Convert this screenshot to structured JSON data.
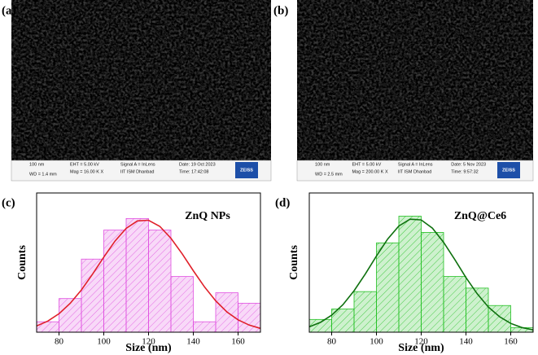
{
  "sem_panels": [
    {
      "label": "(a)",
      "scale": "100 nm",
      "wd": "WD = 1.4 mm",
      "eht": "EHT = 5.00 kV",
      "mag": "Mag = 16.00 K X",
      "signal": "Signal A = InLens",
      "institute": "IIT ISM Dhanbad",
      "date": "Date: 19 Oct 2023",
      "time": "Time: 17:42:08",
      "logo": "ZEISS"
    },
    {
      "label": "(b)",
      "scale": "100 nm",
      "wd": "WD = 2.5 mm",
      "eht": "EHT = 5.00 kV",
      "mag": "Mag = 200.00 K X",
      "signal": "Signal A = InLens",
      "institute": "IIT ISM Dhanbad",
      "date": "Date: 5 Nov 2023",
      "time": "Time: 9:57:32",
      "logo": "ZEISS"
    }
  ],
  "chart_data": [
    {
      "type": "histogram",
      "panel_label": "(c)",
      "annotation": "ZnQ NPs",
      "xlabel": "Size (nm)",
      "ylabel": "Counts",
      "color": "#e050e0",
      "bins": [
        70,
        80,
        90,
        100,
        110,
        120,
        130,
        140,
        150,
        160,
        170
      ],
      "counts": [
        0.9,
        2.9,
        6.3,
        8.8,
        9.8,
        8.8,
        4.8,
        0.9,
        3.4,
        2.5
      ],
      "fit": {
        "color": "#e0202a",
        "x": [
          70,
          75,
          80,
          85,
          90,
          95,
          100,
          105,
          110,
          115,
          120,
          125,
          130,
          135,
          140,
          145,
          150,
          155,
          160,
          165,
          170
        ],
        "values": [
          0.54,
          0.96,
          1.59,
          2.49,
          3.64,
          5.01,
          6.47,
          7.85,
          8.95,
          9.59,
          9.65,
          9.12,
          8.1,
          6.76,
          5.3,
          3.9,
          2.7,
          1.75,
          1.07,
          0.61,
          0.33
        ]
      },
      "xlim": [
        70,
        170
      ],
      "xticks": [
        80,
        100,
        120,
        140,
        160
      ],
      "ylim": [
        0,
        12
      ]
    },
    {
      "type": "histogram",
      "panel_label": "(d)",
      "annotation": "ZnQ@Ce6",
      "xlabel": "Size (nm)",
      "ylabel": "Counts",
      "color": "#22c022",
      "bins": [
        70,
        80,
        90,
        100,
        110,
        120,
        130,
        140,
        150,
        160,
        170
      ],
      "counts": [
        1.1,
        2.0,
        3.5,
        7.7,
        10.0,
        8.6,
        4.8,
        3.8,
        2.3,
        0.4
      ],
      "fit": {
        "color": "#0e700e",
        "x": [
          70,
          75,
          80,
          85,
          90,
          95,
          100,
          105,
          110,
          115,
          120,
          125,
          130,
          135,
          140,
          145,
          150,
          155,
          160,
          165,
          170
        ],
        "values": [
          0.46,
          0.85,
          1.47,
          2.37,
          3.57,
          5.01,
          6.57,
          8.03,
          9.15,
          9.74,
          9.68,
          8.97,
          7.75,
          6.26,
          4.71,
          3.31,
          2.17,
          1.33,
          0.76,
          0.4,
          0.2
        ]
      },
      "xlim": [
        70,
        170
      ],
      "xticks": [
        80,
        100,
        120,
        140,
        160
      ],
      "ylim": [
        0,
        12
      ]
    }
  ]
}
